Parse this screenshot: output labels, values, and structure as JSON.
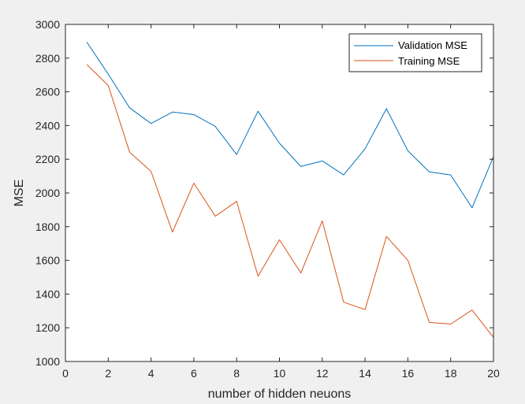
{
  "chart_data": {
    "type": "line",
    "title": "",
    "xlabel": "number of hidden neuons",
    "ylabel": "MSE",
    "xlim": [
      0,
      20
    ],
    "ylim": [
      1000,
      3000
    ],
    "xticks": [
      "0",
      "2",
      "4",
      "6",
      "8",
      "10",
      "12",
      "14",
      "16",
      "18",
      "20"
    ],
    "yticks": [
      "1000",
      "1200",
      "1400",
      "1600",
      "1800",
      "2000",
      "2200",
      "2400",
      "2600",
      "2800",
      "3000"
    ],
    "grid": false,
    "legend_position": "top-right",
    "x": [
      1,
      2,
      3,
      4,
      5,
      6,
      7,
      8,
      9,
      10,
      11,
      12,
      13,
      14,
      15,
      16,
      17,
      18,
      19,
      20
    ],
    "series": [
      {
        "name": "Validation MSE",
        "color": "#0072BD",
        "values": [
          2895,
          2705,
          2505,
          2412,
          2480,
          2465,
          2395,
          2228,
          2485,
          2295,
          2157,
          2190,
          2107,
          2262,
          2500,
          2250,
          2125,
          2107,
          1912,
          2215
        ]
      },
      {
        "name": "Training MSE",
        "color": "#D95319",
        "values": [
          2762,
          2638,
          2242,
          2128,
          1768,
          2058,
          1862,
          1950,
          1506,
          1722,
          1525,
          1834,
          1352,
          1308,
          1742,
          1600,
          1232,
          1222,
          1305,
          1143
        ]
      }
    ]
  }
}
